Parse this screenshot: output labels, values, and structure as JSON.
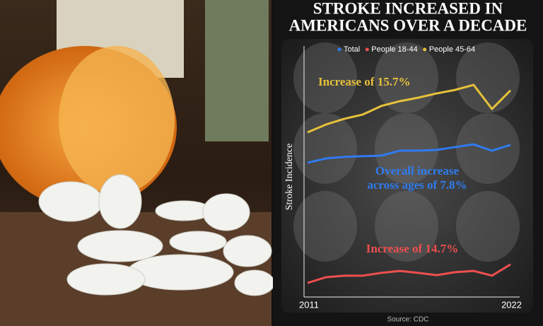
{
  "chart_data": {
    "type": "line",
    "title": [
      "STROKE INCREASED IN",
      "AMERICANS OVER A DECADE"
    ],
    "y_label": "Stroke Incidence",
    "source": "Source: CDC",
    "x": [
      2011,
      2012,
      2013,
      2014,
      2015,
      2016,
      2017,
      2018,
      2019,
      2020,
      2021,
      2022
    ],
    "xlim": [
      2011,
      2022
    ],
    "xticks": [
      2011,
      2022
    ],
    "ylim": [
      0,
      100
    ],
    "series": [
      {
        "name": "Total",
        "color": "#2f7bf0",
        "values": [
          53.5,
          55.2,
          55.8,
          56.1,
          56.3,
          58.3,
          58.3,
          58.6,
          59.7,
          60.8,
          58.3,
          60.6
        ],
        "annotation": [
          "Overall increase",
          "across ages of 7.8%"
        ]
      },
      {
        "name": "People 18-44",
        "color": "#ef4f4f",
        "values": [
          5.6,
          7.9,
          8.5,
          8.5,
          9.6,
          10.4,
          9.6,
          8.7,
          9.9,
          10.4,
          8.5,
          13.0
        ],
        "annotation": [
          "Increase of 14.7%"
        ]
      },
      {
        "name": "People 45-64",
        "color": "#e6c13a",
        "values": [
          65.6,
          68.7,
          71.0,
          72.7,
          76.1,
          78.0,
          79.4,
          81.1,
          82.5,
          84.5,
          74.9,
          82.3
        ],
        "annotation": [
          "Increase of 15.7%"
        ]
      }
    ]
  }
}
